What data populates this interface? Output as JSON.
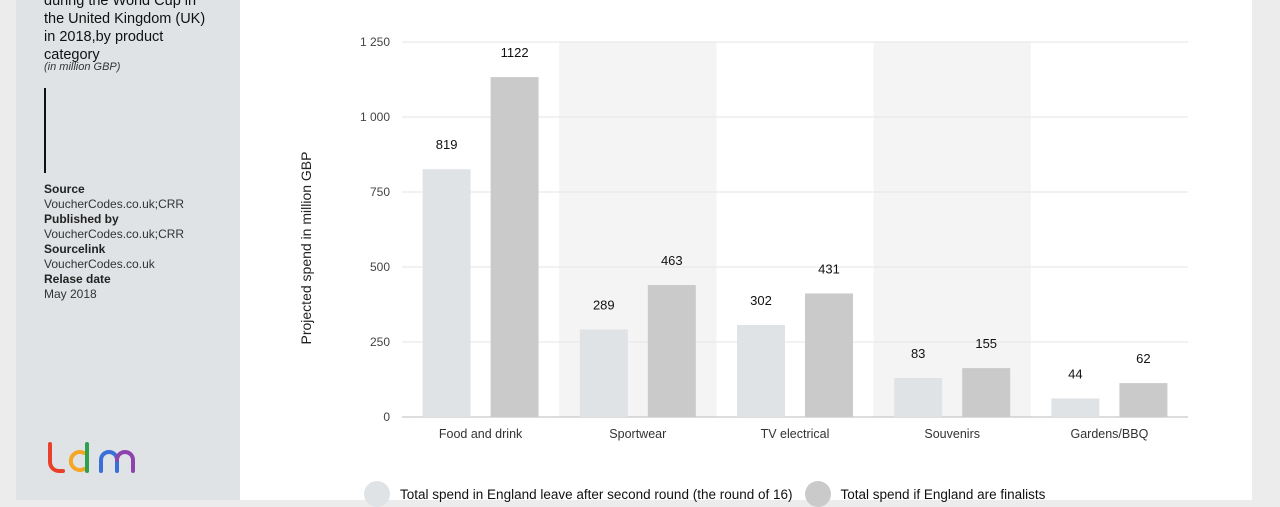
{
  "sidebar": {
    "title_lines": [
      "during the World Cup in",
      "the United Kingdom (UK)",
      "in 2018,by product",
      "category"
    ],
    "unit": "(in million GBP)",
    "meta": [
      {
        "key": "Source",
        "value": "VoucherCodes.co.uk;CRR"
      },
      {
        "key": "Published by",
        "value": "VoucherCodes.co.uk;CRR"
      },
      {
        "key": "Sourcelink",
        "value": "VoucherCodes.co.uk"
      },
      {
        "key": "Relase date",
        "value": "May 2018"
      }
    ],
    "logo_colors": [
      "#e8402a",
      "#f5a623",
      "#2e9e4f",
      "#3b6fd8",
      "#8e44ad"
    ]
  },
  "chart_data": {
    "type": "bar",
    "categories": [
      "Food and drink",
      "Sportwear",
      "TV electrical",
      "Souvenirs",
      "Gardens/BBQ"
    ],
    "series": [
      {
        "name": "Total spend in England leave after second round (the round of 16)",
        "values": [
          819,
          289,
          302,
          83,
          44
        ],
        "color": "#dfe3e6"
      },
      {
        "name": "Total spend if England are finalists",
        "values": [
          1122,
          463,
          431,
          155,
          62
        ],
        "color": "#cacaca"
      }
    ],
    "bar_heights": [
      [
        826,
        292,
        307,
        130,
        62
      ],
      [
        1133,
        440,
        412,
        163,
        113
      ]
    ],
    "ylabel": "Projected spend in million GBP",
    "ylim": [
      0,
      1250
    ],
    "yticks": [
      0,
      250,
      500,
      750,
      1000,
      1250
    ],
    "ytick_labels": [
      "0",
      "250",
      "500",
      "750",
      "1 000",
      "1 250"
    ],
    "grid": true,
    "shaded_bands": [
      1,
      3
    ],
    "legend_position": "bottom"
  }
}
